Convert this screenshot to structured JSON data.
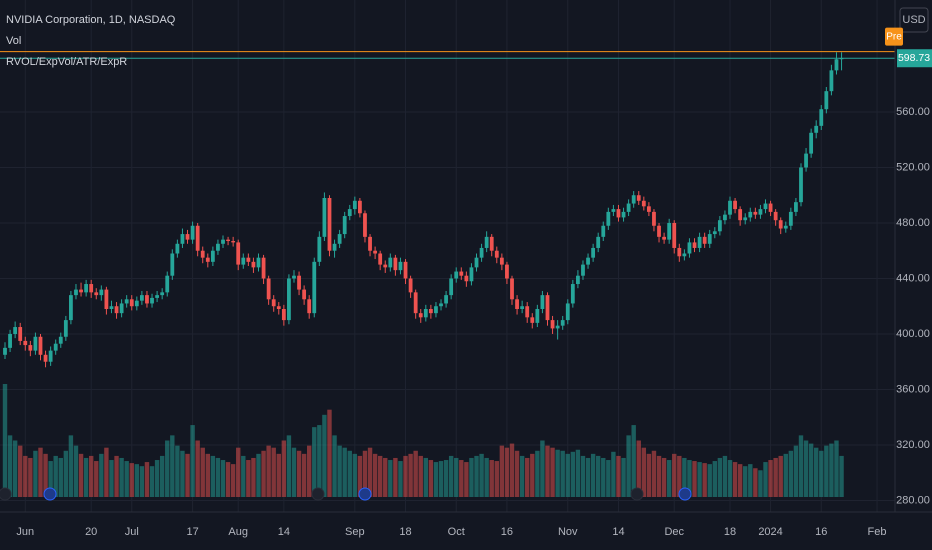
{
  "chart_data": {
    "type": "candlestick",
    "title": "NVIDIA Corporation, 1D, NASDAQ",
    "indicators": [
      "Vol",
      "RVOL/ExpVol/ATR/ExpR"
    ],
    "currency": "USD",
    "premarket_label": "Pre",
    "last_price": 598.73,
    "premarket_price": 603.5,
    "up_color": "#26a69a",
    "down_color": "#ef5350",
    "premarket_color": "#f7931a",
    "grid": true,
    "ylim": [
      271.7,
      640.7
    ],
    "yticks": [
      {
        "value": 280,
        "label": "280.00"
      },
      {
        "value": 320,
        "label": "320.00"
      },
      {
        "value": 360,
        "label": "360.00"
      },
      {
        "value": 400,
        "label": "400.00"
      },
      {
        "value": 440,
        "label": "440.00"
      },
      {
        "value": 480,
        "label": "480.00"
      },
      {
        "value": 520,
        "label": "520.00"
      },
      {
        "value": 560,
        "label": "560.00"
      }
    ],
    "categories": [
      null,
      null,
      null,
      null,
      "Jun",
      null,
      null,
      null,
      null,
      null,
      null,
      null,
      null,
      null,
      null,
      null,
      null,
      "20",
      null,
      null,
      null,
      null,
      null,
      null,
      null,
      "Jul",
      null,
      null,
      null,
      null,
      null,
      null,
      null,
      null,
      null,
      null,
      null,
      "17",
      null,
      null,
      null,
      null,
      null,
      null,
      null,
      null,
      "Aug",
      null,
      null,
      null,
      null,
      null,
      null,
      null,
      null,
      "14",
      null,
      null,
      null,
      null,
      null,
      null,
      null,
      null,
      null,
      null,
      null,
      null,
      null,
      "Sep",
      null,
      null,
      null,
      null,
      null,
      null,
      null,
      null,
      null,
      "18",
      null,
      null,
      null,
      null,
      null,
      null,
      null,
      null,
      null,
      "Oct",
      null,
      null,
      null,
      null,
      null,
      null,
      null,
      null,
      null,
      "16",
      null,
      null,
      null,
      null,
      null,
      null,
      null,
      null,
      null,
      null,
      null,
      "Nov",
      null,
      null,
      null,
      null,
      null,
      null,
      null,
      null,
      null,
      "14",
      null,
      null,
      null,
      null,
      null,
      null,
      null,
      null,
      null,
      null,
      "Dec",
      null,
      null,
      null,
      null,
      null,
      null,
      null,
      null,
      null,
      null,
      "18",
      null,
      null,
      null,
      null,
      null,
      null,
      null,
      "2024",
      null,
      null,
      null,
      null,
      null,
      null,
      null,
      null,
      null,
      "16",
      null,
      null,
      null,
      null,
      null,
      null,
      null,
      null,
      null,
      null,
      "Feb"
    ],
    "open": [
      385,
      390,
      400,
      405,
      395,
      392,
      388,
      398,
      385,
      380,
      388,
      393,
      398,
      410,
      428,
      432,
      430,
      436,
      430,
      428,
      432,
      418,
      420,
      415,
      422,
      425,
      420,
      424,
      428,
      422,
      426,
      428,
      430,
      442,
      458,
      465,
      472,
      468,
      478,
      460,
      455,
      452,
      460,
      465,
      468,
      467,
      466,
      450,
      455,
      452,
      448,
      455,
      440,
      425,
      420,
      418,
      410,
      440,
      442,
      432,
      425,
      415,
      452,
      470,
      498,
      460,
      465,
      472,
      485,
      490,
      496,
      487,
      470,
      460,
      458,
      450,
      448,
      455,
      446,
      452,
      440,
      430,
      415,
      412,
      418,
      415,
      420,
      422,
      428,
      440,
      445,
      442,
      438,
      448,
      455,
      462,
      470,
      460,
      455,
      450,
      440,
      425,
      418,
      420,
      412,
      408,
      418,
      428,
      410,
      404,
      406,
      410,
      422,
      436,
      442,
      450,
      455,
      462,
      470,
      478,
      488,
      490,
      484,
      488,
      494,
      500,
      496,
      492,
      488,
      478,
      470,
      468,
      480,
      462,
      456,
      458,
      466,
      462,
      470,
      465,
      472,
      474,
      482,
      486,
      496,
      490,
      482,
      484,
      488,
      486,
      490,
      494,
      488,
      482,
      476,
      478,
      488,
      495,
      520,
      530,
      545,
      550,
      562,
      575,
      590,
      598,
      null,
      null,
      null,
      null,
      null,
      null,
      null
    ],
    "high": [
      394,
      403,
      409,
      408,
      398,
      395,
      401,
      400,
      388,
      391,
      396,
      401,
      413,
      431,
      436,
      437,
      439,
      439,
      433,
      435,
      434,
      424,
      423,
      425,
      428,
      428,
      427,
      431,
      431,
      429,
      431,
      433,
      445,
      461,
      468,
      476,
      475,
      481,
      480,
      463,
      458,
      463,
      468,
      471,
      470,
      470,
      468,
      458,
      458,
      455,
      458,
      457,
      442,
      428,
      423,
      421,
      443,
      446,
      445,
      435,
      428,
      455,
      474,
      502,
      500,
      468,
      475,
      488,
      493,
      499,
      498,
      489,
      472,
      463,
      460,
      453,
      458,
      457,
      455,
      454,
      442,
      432,
      418,
      421,
      421,
      423,
      425,
      431,
      443,
      448,
      448,
      445,
      451,
      458,
      465,
      474,
      472,
      463,
      458,
      452,
      442,
      428,
      424,
      423,
      415,
      421,
      431,
      430,
      413,
      410,
      413,
      425,
      439,
      446,
      453,
      458,
      465,
      473,
      481,
      491,
      493,
      493,
      491,
      497,
      503,
      503,
      499,
      495,
      490,
      480,
      473,
      483,
      482,
      465,
      461,
      469,
      469,
      473,
      473,
      475,
      477,
      485,
      489,
      499,
      498,
      492,
      487,
      491,
      491,
      493,
      497,
      496,
      490,
      484,
      481,
      491,
      498,
      523,
      534,
      548,
      554,
      565,
      578,
      594,
      603,
      603,
      null,
      null,
      null,
      null,
      null,
      null,
      null
    ],
    "low": [
      382,
      387,
      397,
      392,
      388,
      384,
      385,
      381,
      376,
      377,
      385,
      390,
      395,
      407,
      425,
      427,
      427,
      426,
      425,
      424,
      414,
      415,
      411,
      412,
      419,
      417,
      417,
      421,
      419,
      419,
      423,
      425,
      427,
      439,
      455,
      462,
      465,
      465,
      456,
      451,
      448,
      449,
      457,
      462,
      464,
      463,
      446,
      447,
      449,
      444,
      445,
      436,
      421,
      416,
      414,
      406,
      407,
      437,
      428,
      421,
      411,
      412,
      449,
      467,
      456,
      455,
      462,
      469,
      482,
      486,
      484,
      466,
      456,
      454,
      446,
      444,
      445,
      442,
      443,
      436,
      426,
      411,
      408,
      409,
      411,
      412,
      417,
      419,
      425,
      437,
      439,
      434,
      435,
      445,
      452,
      459,
      456,
      451,
      446,
      436,
      421,
      414,
      415,
      408,
      404,
      405,
      415,
      406,
      400,
      396,
      403,
      407,
      419,
      433,
      439,
      447,
      452,
      459,
      467,
      475,
      485,
      481,
      481,
      485,
      491,
      493,
      489,
      485,
      474,
      466,
      465,
      465,
      458,
      452,
      453,
      455,
      459,
      459,
      462,
      462,
      469,
      471,
      479,
      483,
      487,
      478,
      479,
      481,
      483,
      483,
      487,
      485,
      478,
      472,
      473,
      475,
      485,
      492,
      517,
      527,
      541,
      547,
      559,
      572,
      587,
      590,
      null,
      null,
      null,
      null,
      null,
      null,
      null
    ],
    "close": [
      390,
      400,
      405,
      395,
      392,
      388,
      398,
      385,
      380,
      388,
      393,
      398,
      410,
      428,
      432,
      430,
      436,
      430,
      428,
      432,
      418,
      420,
      415,
      422,
      425,
      420,
      424,
      428,
      422,
      426,
      428,
      430,
      442,
      458,
      465,
      472,
      468,
      478,
      460,
      455,
      452,
      460,
      465,
      468,
      467,
      466,
      450,
      455,
      452,
      448,
      455,
      440,
      425,
      420,
      418,
      410,
      440,
      442,
      432,
      425,
      415,
      452,
      470,
      498,
      460,
      465,
      472,
      485,
      490,
      496,
      487,
      470,
      460,
      458,
      450,
      448,
      455,
      446,
      452,
      440,
      430,
      415,
      412,
      418,
      415,
      420,
      422,
      428,
      440,
      445,
      442,
      438,
      448,
      455,
      462,
      470,
      460,
      455,
      450,
      440,
      425,
      418,
      420,
      412,
      408,
      418,
      428,
      410,
      404,
      406,
      410,
      422,
      436,
      442,
      450,
      455,
      462,
      470,
      478,
      488,
      490,
      484,
      488,
      494,
      500,
      496,
      492,
      488,
      478,
      470,
      468,
      480,
      462,
      456,
      458,
      466,
      462,
      470,
      465,
      472,
      474,
      482,
      486,
      496,
      490,
      482,
      484,
      488,
      486,
      490,
      494,
      488,
      482,
      476,
      478,
      488,
      495,
      520,
      530,
      545,
      550,
      562,
      575,
      590,
      598,
      598.73,
      null,
      null,
      null,
      null,
      null,
      null,
      null
    ],
    "volume": [
      110,
      60,
      55,
      50,
      40,
      38,
      45,
      48,
      42,
      35,
      40,
      38,
      45,
      60,
      50,
      42,
      38,
      40,
      35,
      42,
      48,
      36,
      40,
      38,
      35,
      33,
      32,
      30,
      34,
      30,
      36,
      40,
      55,
      60,
      50,
      45,
      42,
      70,
      55,
      48,
      42,
      40,
      38,
      36,
      34,
      32,
      48,
      40,
      36,
      38,
      42,
      45,
      50,
      48,
      42,
      55,
      60,
      48,
      45,
      42,
      50,
      68,
      70,
      80,
      85,
      60,
      50,
      48,
      45,
      42,
      40,
      45,
      48,
      42,
      40,
      38,
      36,
      38,
      35,
      40,
      42,
      45,
      40,
      38,
      36,
      34,
      35,
      36,
      40,
      38,
      36,
      34,
      38,
      40,
      42,
      38,
      36,
      35,
      50,
      48,
      52,
      45,
      40,
      38,
      42,
      45,
      55,
      50,
      48,
      46,
      45,
      42,
      44,
      46,
      40,
      38,
      42,
      40,
      38,
      36,
      44,
      40,
      38,
      60,
      70,
      55,
      48,
      42,
      45,
      40,
      38,
      36,
      42,
      40,
      38,
      36,
      35,
      34,
      33,
      32,
      35,
      38,
      40,
      36,
      34,
      32,
      30,
      32,
      28,
      26,
      34,
      36,
      38,
      40,
      42,
      45,
      50,
      60,
      55,
      52,
      48,
      45,
      50,
      52,
      55,
      40,
      null,
      null,
      null,
      null,
      null,
      null,
      null
    ]
  }
}
